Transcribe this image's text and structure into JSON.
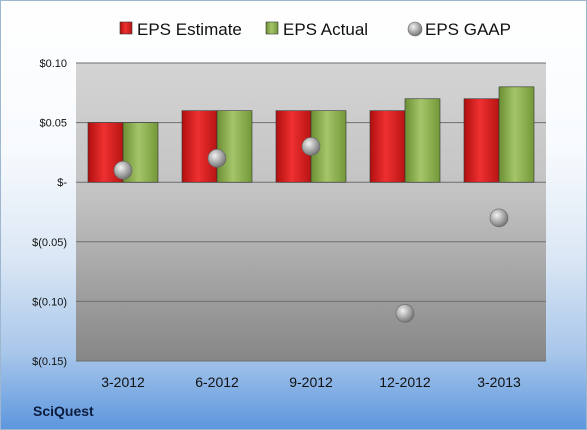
{
  "chart_data": {
    "type": "bar",
    "categories": [
      "3-2012",
      "6-2012",
      "9-2012",
      "12-2012",
      "3-2013"
    ],
    "series": [
      {
        "name": "EPS Estimate",
        "kind": "bar",
        "color": "#e02020",
        "values": [
          0.05,
          0.06,
          0.06,
          0.06,
          0.07
        ]
      },
      {
        "name": "EPS Actual",
        "kind": "bar",
        "color": "#8ab04a",
        "values": [
          0.05,
          0.06,
          0.06,
          0.07,
          0.08
        ]
      },
      {
        "name": "EPS GAAP",
        "kind": "scatter",
        "color": "#a0a0a0",
        "values": [
          0.01,
          0.02,
          0.03,
          -0.11,
          -0.03
        ]
      }
    ],
    "ylim": [
      -0.15,
      0.1
    ],
    "yticks": [
      0.1,
      0.05,
      0,
      -0.05,
      -0.1,
      -0.15
    ],
    "ytick_labels": [
      "$0.10",
      "$0.05",
      "$-",
      "$(0.05)",
      "$(0.10)",
      "$(0.15)"
    ],
    "grid": true,
    "legend_position": "top"
  },
  "watermark": "SciQuest"
}
